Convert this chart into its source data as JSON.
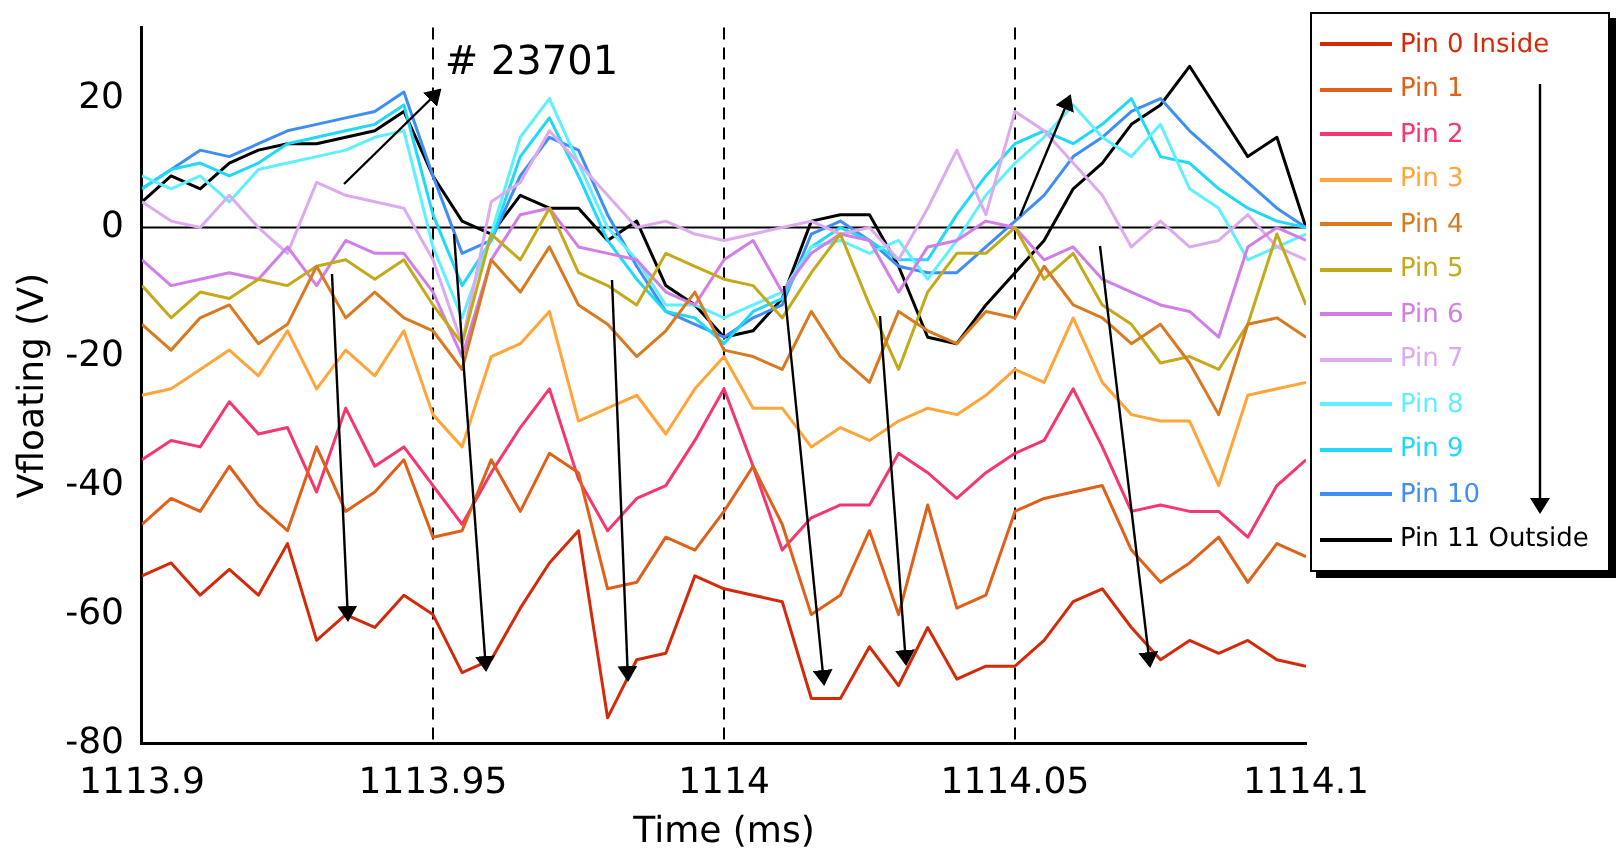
{
  "chart_data": {
    "type": "line",
    "xlabel": "Time (ms)",
    "ylabel": "Vfloating (V)",
    "annotations": [
      "# 23701"
    ],
    "legend": "right",
    "grid": false,
    "marker": "none",
    "line_style": "solid",
    "xlim": [
      1113.9,
      1114.1
    ],
    "xticks": [
      1113.9,
      1113.95,
      1114,
      1114.05,
      1114.1
    ],
    "ylim": [
      -80,
      31
    ],
    "yticks": [
      -80,
      -60,
      -40,
      -20,
      0,
      20
    ],
    "ref_lines": [
      {
        "axis": "y",
        "value": 0,
        "color": "#000000",
        "line_style": "solid"
      },
      {
        "axis": "x",
        "value": 1113.95,
        "color": "#000000",
        "line_style": "dashed"
      },
      {
        "axis": "x",
        "value": 1114,
        "color": "#000000",
        "line_style": "dashed"
      },
      {
        "axis": "x",
        "value": 1114.05,
        "color": "#000000",
        "line_style": "dashed"
      }
    ],
    "x": [
      1113.9,
      1113.905,
      1113.91,
      1113.915,
      1113.92,
      1113.925,
      1113.93,
      1113.935,
      1113.94,
      1113.945,
      1113.95,
      1113.955,
      1113.96,
      1113.965,
      1113.97,
      1113.975,
      1113.98,
      1113.985,
      1113.99,
      1113.995,
      1114,
      1114.005,
      1114.01,
      1114.015,
      1114.02,
      1114.025,
      1114.03,
      1114.035,
      1114.04,
      1114.045,
      1114.05,
      1114.055,
      1114.06,
      1114.065,
      1114.07,
      1114.075,
      1114.08,
      1114.085,
      1114.09,
      1114.095,
      1114.1
    ],
    "series": [
      {
        "name": "Pin 0 Inside",
        "color": "#d42a0a",
        "values": [
          -54,
          -52,
          -57,
          -53,
          -57,
          -49,
          -64,
          -60,
          -62,
          -57,
          -60,
          -69,
          -67,
          -59,
          -52,
          -47,
          -76,
          -67,
          -66,
          -54,
          -56,
          -57,
          -58,
          -73,
          -73,
          -65,
          -71,
          -62,
          -70,
          -68,
          -68,
          -64,
          -58,
          -56,
          -62,
          -67,
          -64,
          -66,
          -64,
          -67,
          -68
        ]
      },
      {
        "name": "Pin 1",
        "color": "#e0601a",
        "values": [
          -46,
          -42,
          -44,
          -37,
          -43,
          -47,
          -34,
          -44,
          -41,
          -36,
          -48,
          -47,
          -36,
          -44,
          -35,
          -38,
          -56,
          -55,
          -48,
          -50,
          -44,
          -37,
          -46,
          -60,
          -57,
          -47,
          -60,
          -43,
          -59,
          -57,
          -44,
          -42,
          -41,
          -40,
          -50,
          -55,
          -52,
          -48,
          -55,
          -49,
          -51
        ]
      },
      {
        "name": "Pin 2",
        "color": "#f5366f",
        "values": [
          -36,
          -33,
          -34,
          -27,
          -32,
          -31,
          -41,
          -28,
          -37,
          -34,
          -40,
          -46,
          -38,
          -31,
          -25,
          -39,
          -47,
          -42,
          -40,
          -33,
          -25,
          -37,
          -50,
          -45,
          -43,
          -43,
          -35,
          -38,
          -42,
          -38,
          -35,
          -33,
          -25,
          -34,
          -44,
          -43,
          -44,
          -44,
          -48,
          -40,
          -36
        ]
      },
      {
        "name": "Pin 3",
        "color": "#ffa53a",
        "values": [
          -26,
          -25,
          -22,
          -19,
          -23,
          -16,
          -25,
          -19,
          -23,
          -16,
          -29,
          -34,
          -20,
          -18,
          -13,
          -30,
          -28,
          -26,
          -32,
          -25,
          -20,
          -28,
          -28,
          -34,
          -31,
          -33,
          -30,
          -28,
          -29,
          -26,
          -22,
          -24,
          -14,
          -24,
          -29,
          -30,
          -30,
          -40,
          -26,
          -25,
          -24
        ]
      },
      {
        "name": "Pin 4",
        "color": "#d97a20",
        "values": [
          -15,
          -19,
          -14,
          -12,
          -18,
          -15,
          -6,
          -14,
          -10,
          -14,
          -16,
          -22,
          -5,
          -10,
          -3,
          -12,
          -15,
          -20,
          -16,
          -10,
          -19,
          -20,
          -22,
          -13,
          -20,
          -24,
          -13,
          -16,
          -18,
          -13,
          -14,
          -6,
          -12,
          -14,
          -18,
          -15,
          -21,
          -29,
          -15,
          -14,
          -17
        ]
      },
      {
        "name": "Pin 5",
        "color": "#c4a91a",
        "values": [
          -9,
          -14,
          -10,
          -11,
          -8,
          -9,
          -6,
          -5,
          -8,
          -5,
          -12,
          -18,
          -1,
          -5,
          3,
          -7,
          -9,
          -12,
          -4,
          -6,
          -8,
          -9,
          -14,
          -7,
          -1,
          -12,
          -22,
          -10,
          -4,
          -4,
          0,
          -8,
          -4,
          -12,
          -15,
          -21,
          -20,
          -22,
          -15,
          -1,
          -12
        ]
      },
      {
        "name": "Pin 6",
        "color": "#d17fe6",
        "values": [
          -5,
          -9,
          -8,
          -7,
          -8,
          -3,
          -9,
          -2,
          -4,
          -4,
          -10,
          -20,
          -5,
          2,
          3,
          -3,
          -4,
          -5,
          -10,
          -12,
          -5,
          -2,
          -10,
          -4,
          -1,
          -2,
          -10,
          -3,
          -2,
          1,
          0,
          -5,
          -3,
          -8,
          -10,
          -12,
          -13,
          -17,
          -3,
          0,
          -2
        ]
      },
      {
        "name": "Pin 7",
        "color": "#ddaaee",
        "values": [
          4,
          1,
          0,
          5,
          0,
          -4,
          7,
          5,
          4,
          3,
          -5,
          -18,
          4,
          7,
          15,
          10,
          5,
          0,
          1,
          -1,
          -2,
          -1,
          0,
          1,
          -1,
          0,
          -5,
          3,
          12,
          2,
          18,
          15,
          10,
          5,
          -3,
          1,
          -3,
          -2,
          2,
          -3,
          -5
        ]
      },
      {
        "name": "Pin 8",
        "color": "#5ef0ff",
        "values": [
          8,
          6,
          8,
          4,
          9,
          10,
          11,
          12,
          14,
          15,
          -3,
          -14,
          -1,
          14,
          20,
          10,
          0,
          -5,
          -12,
          -12,
          -14,
          -12,
          -10,
          -3,
          -2,
          -4,
          -2,
          -8,
          -2,
          5,
          10,
          14,
          19,
          14,
          11,
          16,
          6,
          3,
          -5,
          -3,
          -1
        ]
      },
      {
        "name": "Pin 9",
        "color": "#20d8f8",
        "values": [
          6,
          9,
          10,
          8,
          10,
          13,
          14,
          15,
          16,
          19,
          2,
          -9,
          -2,
          11,
          17,
          8,
          -2,
          -8,
          -13,
          -14,
          -18,
          -13,
          -11,
          -3,
          0,
          -2,
          -5,
          -5,
          2,
          8,
          13,
          15,
          13,
          16,
          20,
          11,
          10,
          6,
          3,
          1,
          0
        ]
      },
      {
        "name": "Pin 10",
        "color": "#3f8ef5",
        "values": [
          6,
          9,
          12,
          11,
          13,
          15,
          16,
          17,
          18,
          21,
          8,
          -4,
          -2,
          8,
          14,
          12,
          2,
          -6,
          -13,
          -15,
          -17,
          -14,
          -12,
          -1,
          1,
          -2,
          -6,
          -7,
          -7,
          -3,
          1,
          5,
          11,
          14,
          18,
          20,
          15,
          11,
          7,
          3,
          0
        ]
      },
      {
        "name": "Pin 11 Outside",
        "color": "#000000",
        "values": [
          4,
          8,
          6,
          10,
          12,
          13,
          13,
          14,
          15,
          18,
          8,
          1,
          -1,
          5,
          3,
          3,
          -2,
          1,
          -9,
          -12,
          -17,
          -16,
          -11,
          1,
          2,
          2,
          -6,
          -17,
          -18,
          -12,
          -7,
          -2,
          6,
          10,
          16,
          19,
          25,
          18,
          11,
          14,
          0
        ]
      }
    ]
  }
}
